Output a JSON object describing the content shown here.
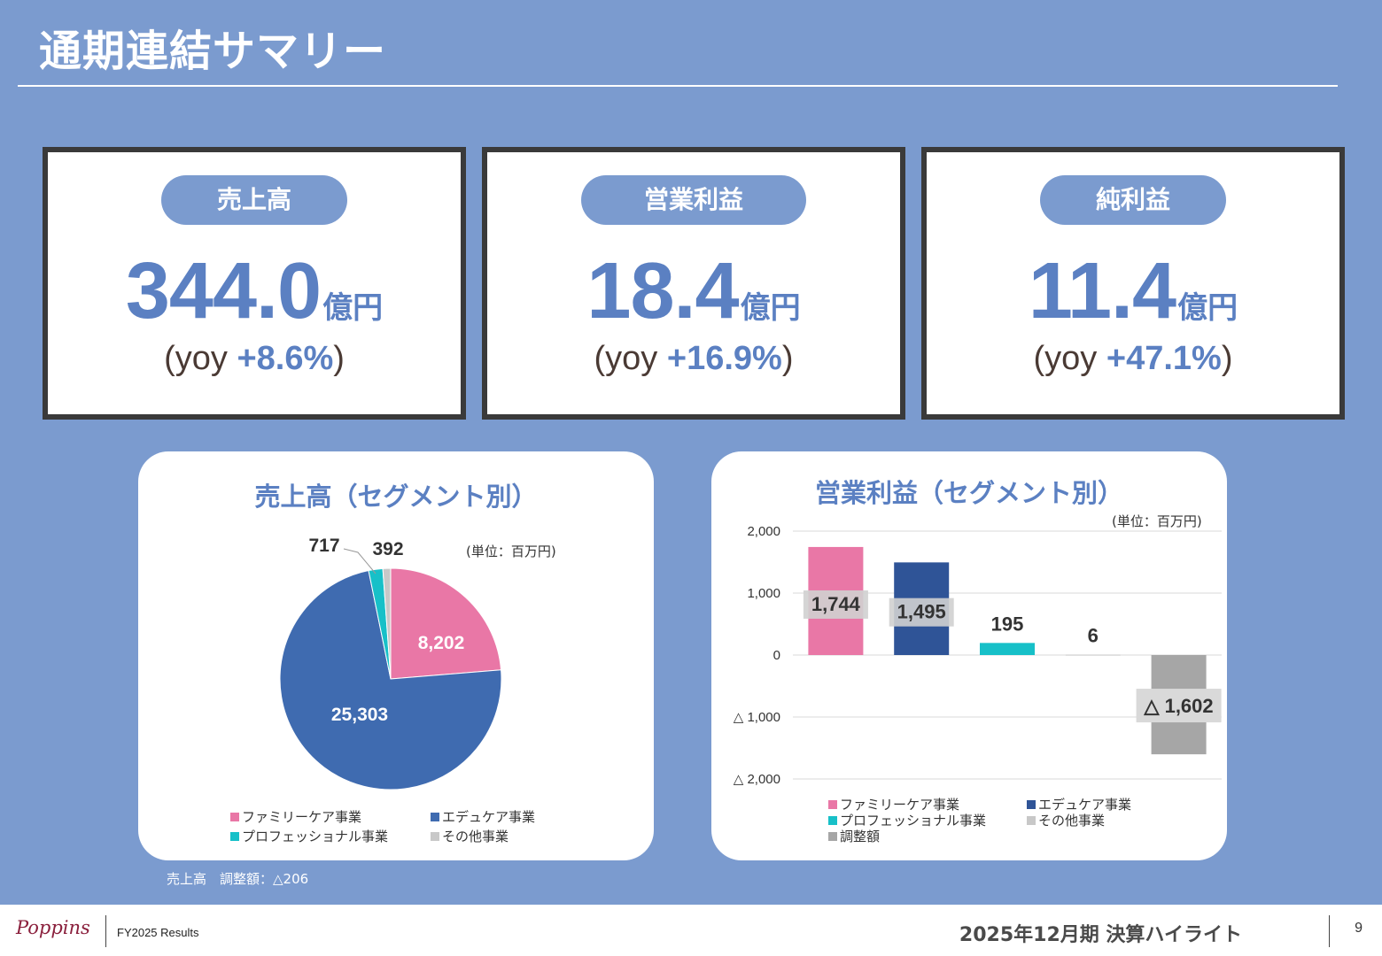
{
  "page": {
    "title": "通期連結サマリー",
    "adjustment_note": "売上高　調整額：△206"
  },
  "kpis": [
    {
      "label": "売上高",
      "value": "344.0",
      "unit": "億円",
      "yoy_open": "(yoy",
      "yoy_value": "+8.6%",
      "yoy_close": ")"
    },
    {
      "label": "営業利益",
      "value": "18.4",
      "unit": "億円",
      "yoy_open": "(yoy",
      "yoy_value": "+16.9%",
      "yoy_close": ")"
    },
    {
      "label": "純利益",
      "value": "11.4",
      "unit": "億円",
      "yoy_open": "(yoy",
      "yoy_value": "+47.1%",
      "yoy_close": ")"
    }
  ],
  "colors": {
    "background": "#7b9bcf",
    "accent": "#5b80c2",
    "family_care": "#e977a6",
    "edu_care": "#3f6bb0",
    "edu_care_bar": "#2f5497",
    "professional": "#17c0c8",
    "other": "#c8c8c8",
    "adjustment": "#a6a6a6"
  },
  "chart_data": [
    {
      "type": "pie",
      "title": "売上高（セグメント別）",
      "unit_note": "(単位：百万円)",
      "labels": [
        "ファミリーケア事業",
        "エデュケア事業",
        "プロフェッショナル事業",
        "その他事業"
      ],
      "values": [
        8202,
        25303,
        717,
        392
      ],
      "data_labels": [
        "8,202",
        "25,303",
        "717",
        "392"
      ],
      "colors": [
        "#e977a6",
        "#3f6bb0",
        "#17c0c8",
        "#c8c8c8"
      ],
      "legend_position": "bottom"
    },
    {
      "type": "bar",
      "title": "営業利益（セグメント別）",
      "unit_note": "(単位：百万円)",
      "categories": [
        "ファミリーケア事業",
        "エデュケア事業",
        "プロフェッショナル事業",
        "その他事業",
        "調整額"
      ],
      "values": [
        1744,
        1495,
        195,
        6,
        -1602
      ],
      "data_labels": [
        "1,744",
        "1,495",
        "195",
        "6",
        "△ 1,602"
      ],
      "colors": [
        "#e977a6",
        "#2f5497",
        "#17c0c8",
        "#c8c8c8",
        "#a6a6a6"
      ],
      "ylim": [
        -2000,
        2000
      ],
      "yticks": [
        2000,
        1000,
        0,
        -1000,
        -2000
      ],
      "ytick_labels": [
        "2,000",
        "1,000",
        "0",
        "△ 1,000",
        "△ 2,000"
      ],
      "grid": true,
      "legend_position": "bottom"
    }
  ],
  "footer": {
    "logo": "Poppins",
    "subtitle": "FY2025 Results",
    "title": "2025年12月期 決算ハイライト",
    "page_number": "9"
  }
}
